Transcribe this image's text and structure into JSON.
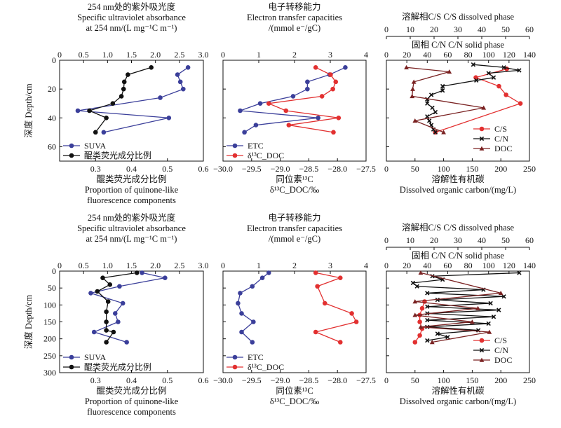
{
  "chart_data": [
    {
      "type": "line",
      "row": "top",
      "panel": "suva-quinone",
      "title_lines": [
        "254 nm处的紫外吸光度",
        "Specific ultraviolet absorbance",
        "at 254 nm/(L mg⁻¹C m⁻¹)"
      ],
      "bottom_label_lines": [
        "醌类荧光成分比例",
        "Proportion of quinone-like",
        "fluorescence components"
      ],
      "ylabel": "深度 Depth/cm",
      "ylim": [
        70,
        0
      ],
      "yticks": [
        0,
        20,
        40,
        60
      ],
      "top_axis": {
        "lim": [
          0,
          3.0
        ],
        "ticks": [
          "0",
          "0.5",
          "1.0",
          "1.5",
          "2.0",
          "2.5",
          "3.0"
        ]
      },
      "bottom_axis": {
        "lim": [
          0.2,
          0.6
        ],
        "ticks": [
          "0.3",
          "0.4",
          "0.5",
          "0.6"
        ]
      },
      "series": [
        {
          "name": "SUVA",
          "axis": "top",
          "color": "#3b3f9a",
          "marker": "circle",
          "x": [
            2.68,
            2.46,
            2.52,
            2.58,
            2.1,
            0.38,
            2.28,
            0.92
          ],
          "y": [
            5,
            10,
            15,
            20,
            26,
            35,
            40,
            50
          ]
        },
        {
          "name": "醌类荧光成分比例",
          "axis": "bottom",
          "color": "#111111",
          "marker": "circle",
          "x": [
            0.455,
            0.39,
            0.38,
            0.378,
            0.372,
            0.348,
            0.283,
            0.33,
            0.3
          ],
          "y": [
            5,
            10,
            15,
            20,
            25,
            30,
            35,
            40,
            50
          ]
        }
      ]
    },
    {
      "type": "line",
      "row": "top",
      "panel": "etc-d13c",
      "title_lines": [
        "电子转移能力",
        "Electron transfer capacities",
        "/(mmol e⁻/gC)"
      ],
      "bottom_label_lines": [
        "同位素¹³C",
        "δ¹³C_DOC/‰"
      ],
      "ylim": [
        70,
        0
      ],
      "top_axis": {
        "lim": [
          0,
          4
        ],
        "ticks": [
          "0",
          "1",
          "2",
          "3",
          "4"
        ]
      },
      "bottom_axis": {
        "lim": [
          -30.0,
          -27.5
        ],
        "ticks": [
          "−30.0",
          "−29.5",
          "−29.0",
          "−28.5",
          "−28.0",
          "−27.5"
        ]
      },
      "series": [
        {
          "name": "ETC",
          "axis": "top",
          "color": "#3b3f9a",
          "marker": "circle",
          "x": [
            3.42,
            2.98,
            2.36,
            2.36,
            1.96,
            1.04,
            0.48,
            2.66,
            0.92,
            0.6
          ],
          "y": [
            5,
            10,
            15,
            20,
            25,
            30,
            35,
            40,
            45,
            50
          ]
        },
        {
          "name": "δ¹³C_DOC",
          "axis": "bottom",
          "color": "#e23030",
          "marker": "circle",
          "x": [
            -28.38,
            -28.12,
            -28.03,
            -28.08,
            -28.27,
            -29.2,
            -28.9,
            -27.98,
            -28.85,
            -28.07
          ],
          "y": [
            5,
            10,
            15,
            20,
            25,
            30,
            35,
            40,
            45,
            50
          ]
        }
      ]
    },
    {
      "type": "line",
      "row": "top",
      "panel": "cs-cn-doc",
      "title_lines": [
        "溶解相C/S  C/S dissolved phase"
      ],
      "second_axis_title": "固相 C/N  C/N solid phase",
      "bottom_label_lines": [
        "溶解性有机碳",
        "Dissolved organic carbon/(mg/L)"
      ],
      "ylim": [
        70,
        0
      ],
      "top_axis": {
        "lim": [
          0,
          60
        ],
        "ticks": [
          "0",
          "10",
          "20",
          "30",
          "40",
          "50",
          "60"
        ]
      },
      "second_axis": {
        "lim": [
          0,
          140
        ],
        "ticks": [
          "0",
          "20",
          "40",
          "60",
          "80",
          "100",
          "120",
          "140"
        ]
      },
      "bottom_axis": {
        "lim": [
          0,
          250
        ],
        "ticks": [
          "0",
          "50",
          "100",
          "150",
          "200",
          "250"
        ]
      },
      "series": [
        {
          "name": "C/S",
          "axis": "top",
          "color": "#e23030",
          "marker": "circle",
          "x": [
            50.5,
            37.5,
            47.2,
            50.2,
            56.2,
            20.5
          ],
          "y": [
            6,
            12,
            18,
            24,
            30,
            50
          ]
        },
        {
          "name": "C/N",
          "axis": "second",
          "color": "#111111",
          "marker": "x",
          "x": [
            85,
            115,
            130,
            100,
            105,
            88,
            55,
            55,
            44,
            40,
            40,
            45,
            48,
            40,
            42,
            44,
            46,
            48
          ],
          "y": [
            3,
            5,
            7,
            9,
            12,
            14,
            18,
            21,
            24,
            27,
            30,
            33,
            36,
            39,
            42,
            45,
            48,
            50
          ]
        },
        {
          "name": "DOC",
          "axis": "bottom",
          "color": "#7a2222",
          "marker": "triangle",
          "x": [
            35,
            110,
            48,
            46,
            45,
            170,
            50,
            100
          ],
          "y": [
            5,
            8,
            15,
            20,
            25,
            33,
            42,
            50
          ]
        }
      ]
    },
    {
      "type": "line",
      "row": "bottom",
      "panel": "suva-quinone",
      "title_lines": [
        "254 nm处的紫外吸光度",
        "Specific ultraviolet absorbance",
        "at 254 nm/(L mg⁻¹C m⁻¹)"
      ],
      "bottom_label_lines": [
        "醌类荧光成分比例",
        "Proportion of quinone-like",
        "fluorescence components"
      ],
      "ylabel": "深度 Depth/cm",
      "ylim": [
        300,
        0
      ],
      "yticks": [
        0,
        50,
        100,
        150,
        200,
        250,
        300
      ],
      "top_axis": {
        "lim": [
          0,
          3.0
        ],
        "ticks": [
          "0",
          "0.5",
          "1.0",
          "1.5",
          "2.0",
          "2.5",
          "3.0"
        ]
      },
      "bottom_axis": {
        "lim": [
          0.2,
          0.6
        ],
        "ticks": [
          "0.3",
          "0.4",
          "0.5",
          "0.6"
        ]
      },
      "series": [
        {
          "name": "SUVA",
          "axis": "top",
          "color": "#3b3f9a",
          "marker": "circle",
          "x": [
            1.72,
            2.2,
            1.25,
            0.65,
            1.32,
            1.16,
            1.22,
            0.72,
            1.4
          ],
          "y": [
            5,
            20,
            45,
            65,
            95,
            125,
            150,
            180,
            210
          ]
        },
        {
          "name": "醌类荧光成分比例",
          "axis": "bottom",
          "color": "#111111",
          "marker": "circle",
          "x": [
            0.415,
            0.32,
            0.34,
            0.305,
            0.335,
            0.33,
            0.33,
            0.33,
            0.35,
            0.33
          ],
          "y": [
            5,
            20,
            40,
            60,
            90,
            120,
            150,
            175,
            180,
            210
          ]
        }
      ]
    },
    {
      "type": "line",
      "row": "bottom",
      "panel": "etc-d13c",
      "title_lines": [
        "电子转移能力",
        "Electron transfer capacities",
        "/(mmol e⁻/gC)"
      ],
      "bottom_label_lines": [
        "同位素¹³C",
        "δ¹³C_DOC/‰"
      ],
      "ylim": [
        300,
        0
      ],
      "top_axis": {
        "lim": [
          0,
          4
        ],
        "ticks": [
          "0",
          "1",
          "2",
          "3",
          "4"
        ]
      },
      "bottom_axis": {
        "lim": [
          -30.0,
          -27.5
        ],
        "ticks": [
          "−30.0",
          "−29.5",
          "−29.0",
          "−28.5",
          "−28.0",
          "−27.5"
        ]
      },
      "series": [
        {
          "name": "ETC",
          "axis": "top",
          "color": "#3b3f9a",
          "marker": "circle",
          "x": [
            1.28,
            1.1,
            0.82,
            0.48,
            0.42,
            0.52,
            0.85,
            0.52,
            0.82
          ],
          "y": [
            5,
            20,
            45,
            65,
            95,
            125,
            150,
            180,
            210
          ]
        },
        {
          "name": "δ¹³C_DOC",
          "axis": "bottom",
          "color": "#e23030",
          "marker": "circle",
          "x": [
            -28.38,
            -27.95,
            -28.35,
            -28.22,
            -27.75,
            -27.67,
            -28.38,
            -27.95
          ],
          "y": [
            5,
            20,
            45,
            95,
            125,
            150,
            180,
            210
          ]
        }
      ]
    },
    {
      "type": "line",
      "row": "bottom",
      "panel": "cs-cn-doc",
      "title_lines": [
        "溶解相C/S  C/S dissolved phase"
      ],
      "title_prefix": "溶解相",
      "second_axis_title": "固相 C/N  C/N solid phase",
      "bottom_label_lines": [
        "溶解性有机碳",
        "Dissolved organic carbon/(mg/L)"
      ],
      "ylim": [
        300,
        0
      ],
      "top_axis": {
        "lim": [
          0,
          60
        ],
        "ticks": [
          "0",
          "10",
          "20",
          "30",
          "40",
          "50",
          "60"
        ]
      },
      "second_axis": {
        "lim": [
          0,
          140
        ],
        "ticks": [
          "0",
          "20",
          "40",
          "60",
          "80",
          "100",
          "120",
          "140"
        ]
      },
      "bottom_axis": {
        "lim": [
          0,
          250
        ],
        "ticks": [
          "0",
          "50",
          "100",
          "150",
          "200",
          "250"
        ]
      },
      "series": [
        {
          "name": "C/S",
          "axis": "top",
          "color": "#e23030",
          "marker": "circle",
          "x": [
            16,
            15,
            14,
            14,
            15,
            14,
            12
          ],
          "y": [
            90,
            110,
            130,
            150,
            170,
            190,
            210
          ]
        },
        {
          "name": "C/N",
          "axis": "second",
          "color": "#111111",
          "marker": "x",
          "x": [
            130,
            45,
            55,
            26,
            30,
            95,
            40,
            115,
            50,
            102,
            40,
            110,
            40,
            105,
            40,
            100,
            40,
            90,
            50,
            60,
            40
          ],
          "y": [
            5,
            15,
            25,
            35,
            45,
            55,
            65,
            75,
            85,
            95,
            105,
            115,
            125,
            135,
            145,
            155,
            165,
            175,
            185,
            195,
            205
          ]
        },
        {
          "name": "DOC",
          "axis": "bottom",
          "color": "#7a2222",
          "marker": "triangle",
          "x": [
            60,
            200,
            50,
            160,
            50,
            150,
            60,
            180,
            80
          ],
          "y": [
            5,
            65,
            90,
            110,
            130,
            150,
            165,
            180,
            210
          ]
        }
      ]
    }
  ]
}
